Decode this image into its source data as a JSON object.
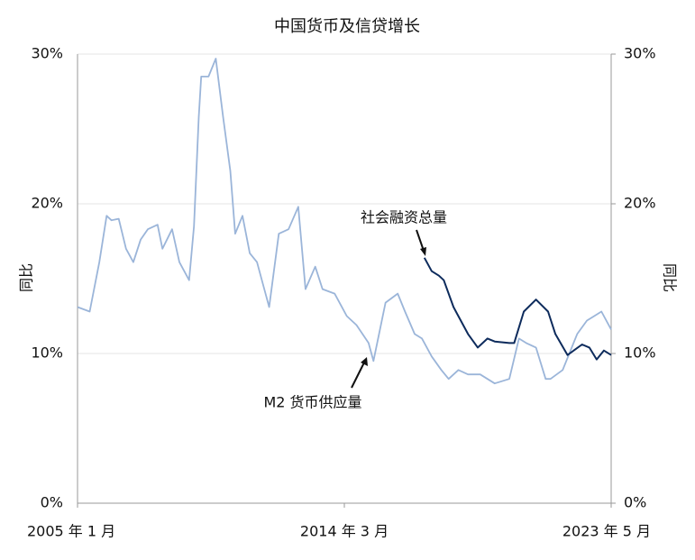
{
  "chart_data": {
    "type": "line",
    "title": "中国货币及信贷增长",
    "ylabel": "同比",
    "y2label": "同比",
    "annotations": [
      "社会融资总量",
      "M2 货币供应量"
    ],
    "xlim": [
      "2005-01",
      "2023-05"
    ],
    "xticks": [
      {
        "value": "2005-01",
        "label": "2005 年 1 月"
      },
      {
        "value": "2014-03",
        "label": "2014 年 3 月"
      },
      {
        "value": "2023-05",
        "label": "2023 年 5 月"
      }
    ],
    "ylim": [
      0,
      30
    ],
    "yticks": [
      {
        "value": 0,
        "label": "0%"
      },
      {
        "value": 10,
        "label": "10%"
      },
      {
        "value": 20,
        "label": "20%"
      },
      {
        "value": 30,
        "label": "30%"
      }
    ],
    "y2lim": [
      0,
      30
    ],
    "y2ticks": [
      {
        "value": 0,
        "label": "0%"
      },
      {
        "value": 10,
        "label": "10%"
      },
      {
        "value": 20,
        "label": "20%"
      },
      {
        "value": 30,
        "label": "30%"
      }
    ],
    "grid": true,
    "series": [
      {
        "name": "M2 货币供应量",
        "color": "#9bb5d9",
        "x": [
          "2005-01",
          "2005-06",
          "2005-10",
          "2006-01",
          "2006-03",
          "2006-06",
          "2006-09",
          "2006-12",
          "2007-03",
          "2007-06",
          "2007-10",
          "2007-12",
          "2008-04",
          "2008-07",
          "2008-11",
          "2009-01",
          "2009-03",
          "2009-04",
          "2009-07",
          "2009-10",
          "2010-01",
          "2010-04",
          "2010-06",
          "2010-09",
          "2010-12",
          "2011-03",
          "2011-05",
          "2011-08",
          "2011-12",
          "2012-04",
          "2012-08",
          "2012-11",
          "2013-03",
          "2013-06",
          "2013-11",
          "2014-04",
          "2014-08",
          "2015-01",
          "2015-03",
          "2015-08",
          "2016-01",
          "2016-04",
          "2016-08",
          "2016-11",
          "2017-03",
          "2017-07",
          "2017-10",
          "2018-02",
          "2018-06",
          "2018-11",
          "2019-05",
          "2019-11",
          "2020-03",
          "2020-06",
          "2020-10",
          "2021-02",
          "2021-04",
          "2021-09",
          "2022-03",
          "2022-07",
          "2022-10",
          "2023-01",
          "2023-05"
        ],
        "values": [
          13.1,
          12.8,
          16.1,
          19.2,
          18.9,
          19,
          17,
          16.1,
          17.6,
          18.3,
          18.6,
          17,
          18.3,
          16.1,
          14.9,
          18.5,
          25.8,
          28.5,
          28.5,
          29.7,
          25.8,
          22.2,
          18,
          19.2,
          16.7,
          16.1,
          14.9,
          13.1,
          18,
          18.3,
          19.8,
          14.3,
          15.8,
          14.3,
          14,
          12.5,
          11.9,
          10.7,
          9.5,
          13.4,
          14,
          12.8,
          11.3,
          11,
          9.8,
          8.9,
          8.3,
          8.9,
          8.6,
          8.6,
          8,
          8.3,
          11,
          10.7,
          10.4,
          8.3,
          8.3,
          8.9,
          11.3,
          12.2,
          12.5,
          12.8,
          11.6
        ]
      },
      {
        "name": "社会融资总量",
        "color": "#0d2b5c",
        "x": [
          "2016-12",
          "2017-03",
          "2017-06",
          "2017-08",
          "2017-12",
          "2018-06",
          "2018-10",
          "2019-02",
          "2019-05",
          "2019-11",
          "2020-01",
          "2020-05",
          "2020-10",
          "2021-03",
          "2021-06",
          "2021-11",
          "2022-05",
          "2022-08",
          "2022-11",
          "2023-02",
          "2023-05"
        ],
        "values": [
          16.4,
          15.5,
          15.2,
          14.9,
          13.1,
          11.3,
          10.4,
          11,
          10.8,
          10.7,
          10.7,
          12.8,
          13.6,
          12.8,
          11.3,
          9.9,
          10.6,
          10.4,
          9.6,
          10.2,
          9.9
        ]
      }
    ]
  }
}
